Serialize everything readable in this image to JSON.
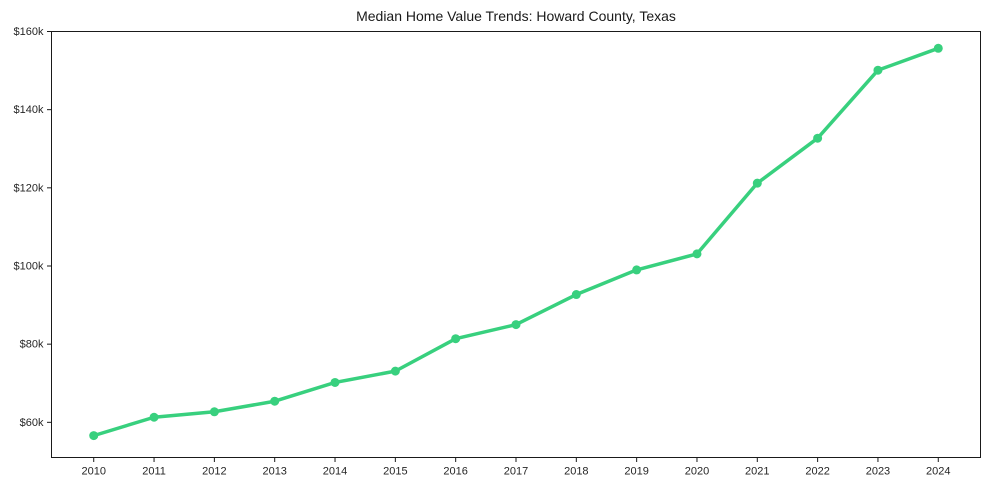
{
  "chart_data": {
    "type": "line",
    "title": "Median Home Value Trends: Howard County, Texas",
    "x": [
      2010,
      2011,
      2012,
      2013,
      2014,
      2015,
      2016,
      2017,
      2018,
      2019,
      2020,
      2021,
      2022,
      2023,
      2024
    ],
    "x_tick_labels": [
      "2010",
      "2011",
      "2012",
      "2013",
      "2014",
      "2015",
      "2016",
      "2017",
      "2018",
      "2019",
      "2020",
      "2021",
      "2022",
      "2023",
      "2024"
    ],
    "values": [
      56600,
      61300,
      62700,
      65400,
      70200,
      73100,
      81400,
      85000,
      92700,
      99000,
      103100,
      121200,
      132700,
      150100,
      155700
    ],
    "y_ticks": [
      {
        "value": 60000,
        "label": "$60k"
      },
      {
        "value": 80000,
        "label": "$80k"
      },
      {
        "value": 100000,
        "label": "$100k"
      },
      {
        "value": 120000,
        "label": "$120k"
      },
      {
        "value": 140000,
        "label": "$140k"
      },
      {
        "value": 160000,
        "label": "$160k"
      }
    ],
    "xlim": [
      2009.3,
      2024.7
    ],
    "ylim": [
      51000,
      160000
    ],
    "grid": false,
    "legend": null,
    "line_color": "#38d07e",
    "axis_color": "#1a1a1a",
    "text_color": "#262626",
    "marker": "circle"
  }
}
